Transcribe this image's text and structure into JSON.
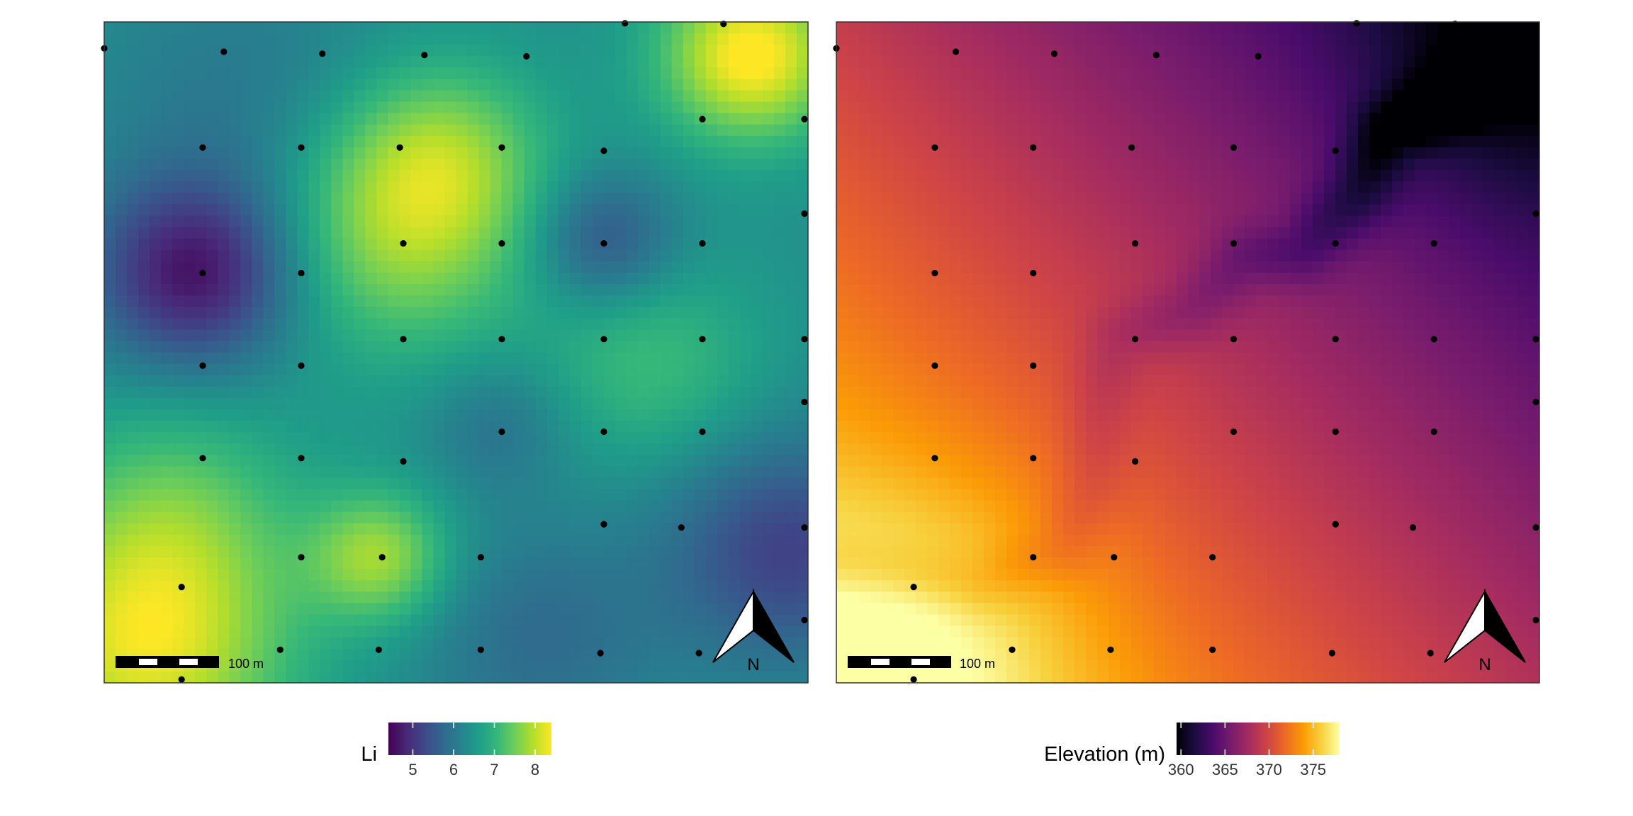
{
  "panels": [
    {
      "id": "li",
      "legend_title": "Li",
      "colormap": "viridis",
      "value_range": [
        4.4,
        8.4
      ],
      "legend_ticks": [
        5,
        6,
        7,
        8
      ],
      "legend_tick_labels": [
        "5",
        "6",
        "7",
        "8"
      ],
      "scale_bar_label": "100 m",
      "north_arrow_label": "N"
    },
    {
      "id": "elevation",
      "legend_title": "Elevation (m)",
      "colormap": "inferno",
      "value_range": [
        359.5,
        378
      ],
      "legend_ticks": [
        360,
        365,
        370,
        375
      ],
      "legend_tick_labels": [
        "360",
        "365",
        "370",
        "375"
      ],
      "scale_bar_label": "100 m",
      "north_arrow_label": "N"
    }
  ],
  "colors": {
    "viridis": [
      "#440154",
      "#482878",
      "#3e4989",
      "#31688e",
      "#26828e",
      "#1f9e89",
      "#35b779",
      "#6ece58",
      "#b5de2b",
      "#fde725"
    ],
    "inferno": [
      "#000004",
      "#1b0c41",
      "#4a0c6b",
      "#781c6d",
      "#a52c60",
      "#cf4446",
      "#ed6925",
      "#fb9b06",
      "#f7d13d",
      "#fcffa4"
    ],
    "sample_point": "#000000",
    "frame": "#333333"
  }
}
